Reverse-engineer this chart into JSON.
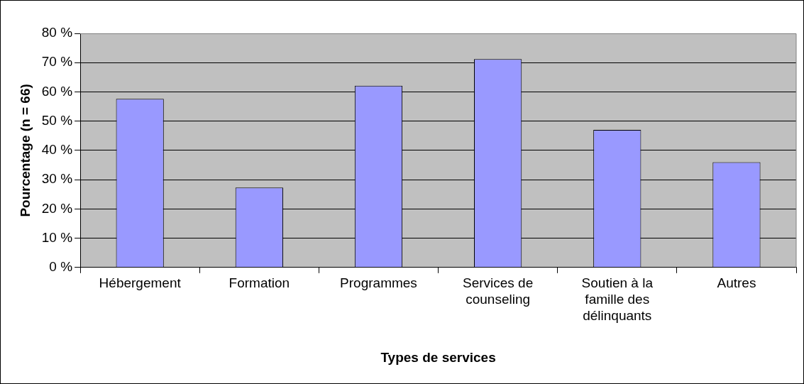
{
  "chart_data": {
    "type": "bar",
    "xlabel": "Types de services",
    "ylabel": "Pourcentage (n = 66)",
    "categories": [
      "Hébergement",
      "Formation",
      "Programmes",
      "Services de counseling",
      "Soutien à la famille des délinquants",
      "Autres"
    ],
    "values": [
      57.6,
      27.3,
      62.1,
      71.2,
      47,
      36
    ],
    "color": "#9999ff",
    "ylim": [
      0,
      80
    ],
    "yticks": [
      {
        "value": 0,
        "label": "0 %"
      },
      {
        "value": 10,
        "label": "10 %"
      },
      {
        "value": 20,
        "label": "20 %"
      },
      {
        "value": 30,
        "label": "30 %"
      },
      {
        "value": 40,
        "label": "40 %"
      },
      {
        "value": 50,
        "label": "50 %"
      },
      {
        "value": 60,
        "label": "60 %"
      },
      {
        "value": 70,
        "label": "70 %"
      },
      {
        "value": 80,
        "label": "80 %"
      }
    ],
    "grid": "y",
    "legend": false
  }
}
